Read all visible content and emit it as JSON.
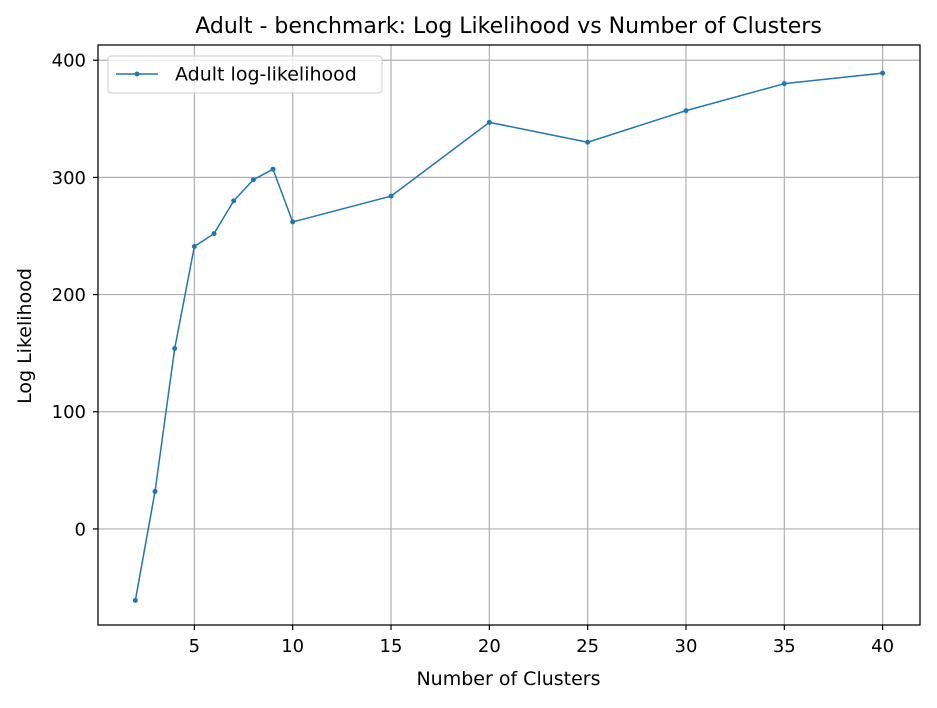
{
  "chart_data": {
    "type": "line",
    "title": "Adult - benchmark: Log Likelihood vs Number of Clusters",
    "xlabel": "Number of Clusters",
    "ylabel": "Log Likelihood",
    "xlim": [
      0.1,
      41.9
    ],
    "ylim": [
      -82,
      413
    ],
    "xticks": [
      5,
      10,
      15,
      20,
      25,
      30,
      35,
      40
    ],
    "yticks": [
      0,
      100,
      200,
      300,
      400
    ],
    "grid": true,
    "legend_position": "upper-left",
    "colors": {
      "series": "#1f77b4",
      "grid": "#b0b0b0",
      "axes": "#000000"
    },
    "series": [
      {
        "name": "Adult log-likelihood",
        "marker": "point",
        "x": [
          2,
          3,
          4,
          5,
          6,
          7,
          8,
          9,
          10,
          15,
          20,
          25,
          30,
          35,
          40
        ],
        "y": [
          -61,
          32,
          154,
          241,
          252,
          280,
          298,
          307,
          262,
          284,
          347,
          330,
          357,
          380,
          389
        ]
      }
    ]
  }
}
